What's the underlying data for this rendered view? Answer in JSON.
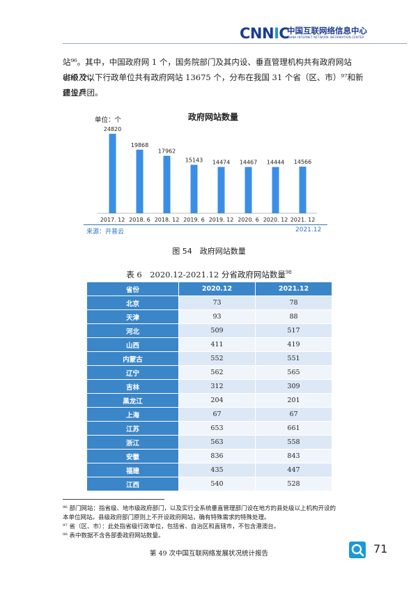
{
  "header": {
    "logo_text": "CNNIC",
    "org_name_cn": "中国互联网络信息中心",
    "org_name_en": "CHINA INTERNET NETWORK INFORMATION CENTER"
  },
  "paragraph": {
    "line1": "站⁹⁶。其中，中国政府网 1 个，国务院部门及其内设、垂直管理机构共有政府网站 890 个；",
    "line2": "省级及以下行政单位共有政府网站 13675 个，分布在我国 31 个省（区、市）⁹⁷和新疆生产",
    "line3": "建设兵团。"
  },
  "chart_data": {
    "type": "bar",
    "title": "政府网站数量",
    "unit_label": "单位：个",
    "categories": [
      "2017. 12",
      "2018. 6",
      "2018. 12",
      "2019. 6",
      "2019. 12",
      "2020. 6",
      "2020. 12",
      "2021. 12"
    ],
    "values": [
      24820,
      19868,
      17962,
      15143,
      14474,
      14467,
      14444,
      14566
    ],
    "ylim": [
      0,
      27000
    ],
    "bar_color": "#3a8ee6",
    "source": "来源：开普云",
    "date": "2021.12"
  },
  "figure_caption": "图 54　政府网站数量",
  "table": {
    "caption": "表 6　2020.12-2021.12 分省政府网站数量",
    "caption_sup": "98",
    "headers": [
      "省份",
      "2020.12",
      "2021.12"
    ],
    "rows": [
      [
        "北京",
        "73",
        "78"
      ],
      [
        "天津",
        "93",
        "88"
      ],
      [
        "河北",
        "509",
        "517"
      ],
      [
        "山西",
        "411",
        "419"
      ],
      [
        "内蒙古",
        "552",
        "551"
      ],
      [
        "辽宁",
        "562",
        "565"
      ],
      [
        "吉林",
        "312",
        "309"
      ],
      [
        "黑龙江",
        "204",
        "201"
      ],
      [
        "上海",
        "67",
        "67"
      ],
      [
        "江苏",
        "653",
        "661"
      ],
      [
        "浙江",
        "563",
        "558"
      ],
      [
        "安徽",
        "836",
        "843"
      ],
      [
        "福建",
        "435",
        "447"
      ],
      [
        "江西",
        "540",
        "528"
      ]
    ]
  },
  "footnotes": {
    "fn96_line1": "⁹⁶ 部门网站：指省级、地市级政府部门，以及实行全系统垂直管理部门设在地方的县处级以上机构开设的",
    "fn96_line2": "本单位网站。县级政府部门原则上不开设政府网站，确有特殊需求的特殊处理。",
    "fn97": "⁹⁷ 省（区、市）：此处指省级行政单位，包括省、自治区和直辖市，不包含港澳台。",
    "fn98": "⁹⁸ 表中数据不含各部委政府网站数量。"
  },
  "footer": {
    "report_title": "第 49 次中国互联网络发展状况统计报告",
    "page_number": "71",
    "icon": "cnnic-magnifier-logo-icon"
  }
}
